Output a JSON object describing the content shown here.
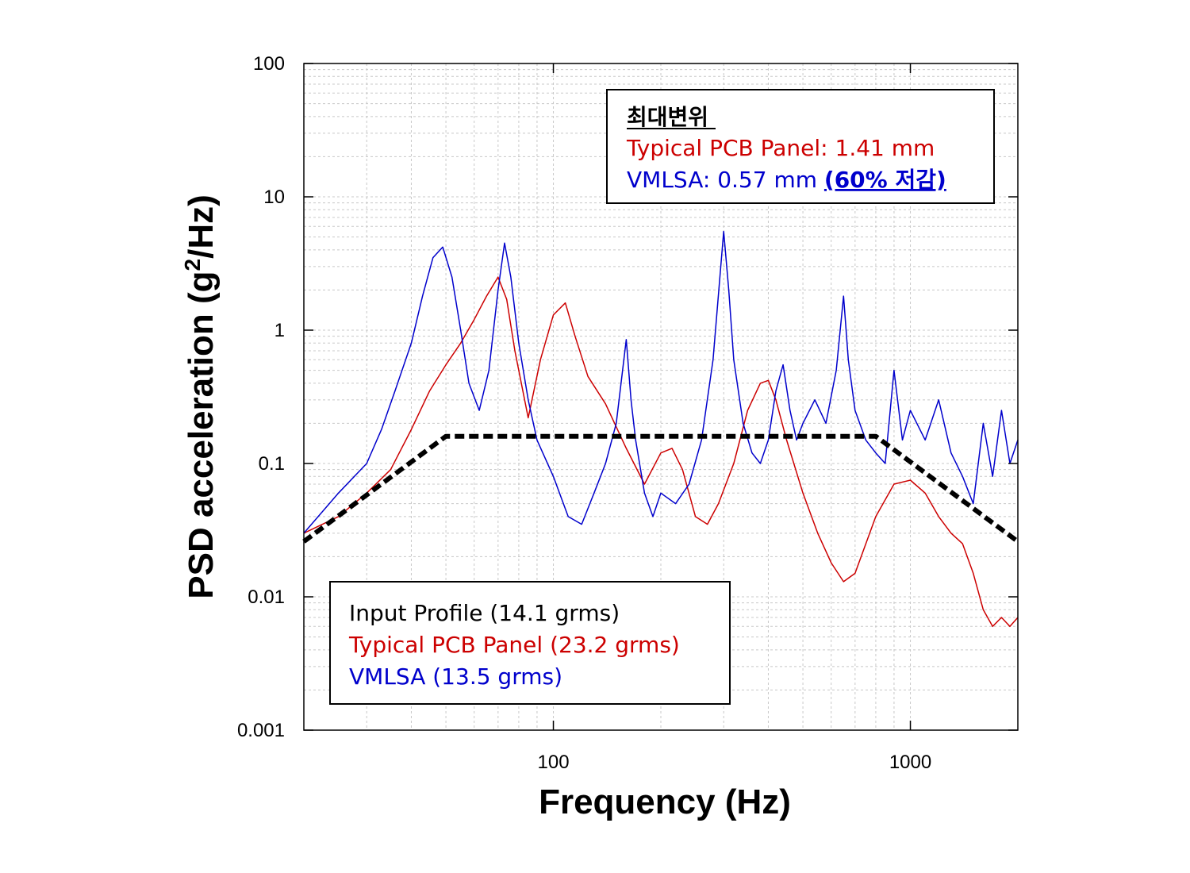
{
  "chart_data": {
    "type": "line",
    "xlabel": "Frequency (Hz)",
    "ylabel_main": "PSD acceleration (g",
    "ylabel_sup": "2",
    "ylabel_tail": "/Hz)",
    "x_scale": "log",
    "y_scale": "log",
    "xlim": [
      20,
      2000
    ],
    "ylim": [
      0.001,
      100
    ],
    "x_ticks": [
      100,
      1000
    ],
    "x_tick_labels": [
      "100",
      "1000"
    ],
    "y_ticks": [
      0.001,
      0.01,
      0.1,
      1,
      10,
      100
    ],
    "y_tick_labels": [
      "0.001",
      "0.01",
      "0.1",
      "1",
      "10",
      "100"
    ],
    "grid": true,
    "legend": {
      "placement": "bottom-left",
      "entries": [
        {
          "label": "Input Profile (14.1 grms)",
          "color": "#000000"
        },
        {
          "label": "Typical PCB Panel (23.2 grms)",
          "color": "#cc0000"
        },
        {
          "label": "VMLSA (13.5 grms)",
          "color": "#0000cc"
        }
      ]
    },
    "annotation": {
      "placement": "top-right",
      "heading": "최대변위",
      "line1": "Typical PCB Panel: 1.41 mm",
      "line2_prefix": "VMLSA: 0.57 mm ",
      "line2_emph": "(60% 저감)"
    },
    "series": [
      {
        "name": "Input Profile (14.1 grms)",
        "color": "#000000",
        "style": "dashed",
        "x": [
          20,
          50,
          800,
          2000
        ],
        "y": [
          0.026,
          0.16,
          0.16,
          0.026
        ]
      },
      {
        "name": "Typical PCB Panel (23.2 grms)",
        "color": "#cc0000",
        "style": "solid",
        "x": [
          20,
          25,
          30,
          35,
          40,
          45,
          50,
          55,
          60,
          65,
          70,
          74,
          78,
          85,
          92,
          100,
          108,
          115,
          125,
          140,
          160,
          180,
          200,
          215,
          230,
          250,
          270,
          290,
          320,
          350,
          380,
          400,
          420,
          450,
          500,
          550,
          600,
          650,
          700,
          800,
          900,
          1000,
          1100,
          1200,
          1300,
          1400,
          1500,
          1600,
          1700,
          1800,
          1900,
          2000
        ],
        "y": [
          0.03,
          0.04,
          0.06,
          0.09,
          0.18,
          0.35,
          0.55,
          0.8,
          1.2,
          1.8,
          2.5,
          1.7,
          0.7,
          0.22,
          0.6,
          1.3,
          1.6,
          0.9,
          0.45,
          0.28,
          0.13,
          0.07,
          0.12,
          0.13,
          0.09,
          0.04,
          0.035,
          0.05,
          0.1,
          0.25,
          0.4,
          0.42,
          0.3,
          0.15,
          0.06,
          0.03,
          0.018,
          0.013,
          0.015,
          0.04,
          0.07,
          0.075,
          0.06,
          0.04,
          0.03,
          0.025,
          0.015,
          0.008,
          0.006,
          0.007,
          0.006,
          0.007
        ]
      },
      {
        "name": "VMLSA (13.5 grms)",
        "color": "#0000cc",
        "style": "solid",
        "x": [
          20,
          25,
          30,
          33,
          36,
          40,
          43,
          46,
          49,
          52,
          55,
          58,
          62,
          66,
          70,
          73,
          76,
          80,
          85,
          90,
          100,
          110,
          120,
          130,
          140,
          150,
          160,
          165,
          170,
          180,
          190,
          200,
          220,
          240,
          260,
          280,
          300,
          310,
          320,
          340,
          360,
          380,
          400,
          420,
          440,
          460,
          480,
          500,
          540,
          580,
          620,
          650,
          670,
          700,
          750,
          800,
          850,
          900,
          950,
          1000,
          1100,
          1200,
          1300,
          1400,
          1500,
          1600,
          1700,
          1800,
          1900,
          2000
        ],
        "y": [
          0.03,
          0.06,
          0.1,
          0.18,
          0.35,
          0.8,
          1.8,
          3.5,
          4.2,
          2.5,
          1.0,
          0.4,
          0.25,
          0.5,
          2.0,
          4.5,
          2.5,
          0.8,
          0.3,
          0.15,
          0.08,
          0.04,
          0.035,
          0.06,
          0.1,
          0.2,
          0.85,
          0.3,
          0.15,
          0.06,
          0.04,
          0.06,
          0.05,
          0.07,
          0.15,
          0.6,
          5.5,
          2.0,
          0.6,
          0.2,
          0.12,
          0.1,
          0.15,
          0.35,
          0.55,
          0.25,
          0.15,
          0.2,
          0.3,
          0.2,
          0.5,
          1.8,
          0.6,
          0.25,
          0.15,
          0.12,
          0.1,
          0.5,
          0.15,
          0.25,
          0.15,
          0.3,
          0.12,
          0.08,
          0.05,
          0.2,
          0.08,
          0.25,
          0.1,
          0.15
        ]
      }
    ]
  }
}
